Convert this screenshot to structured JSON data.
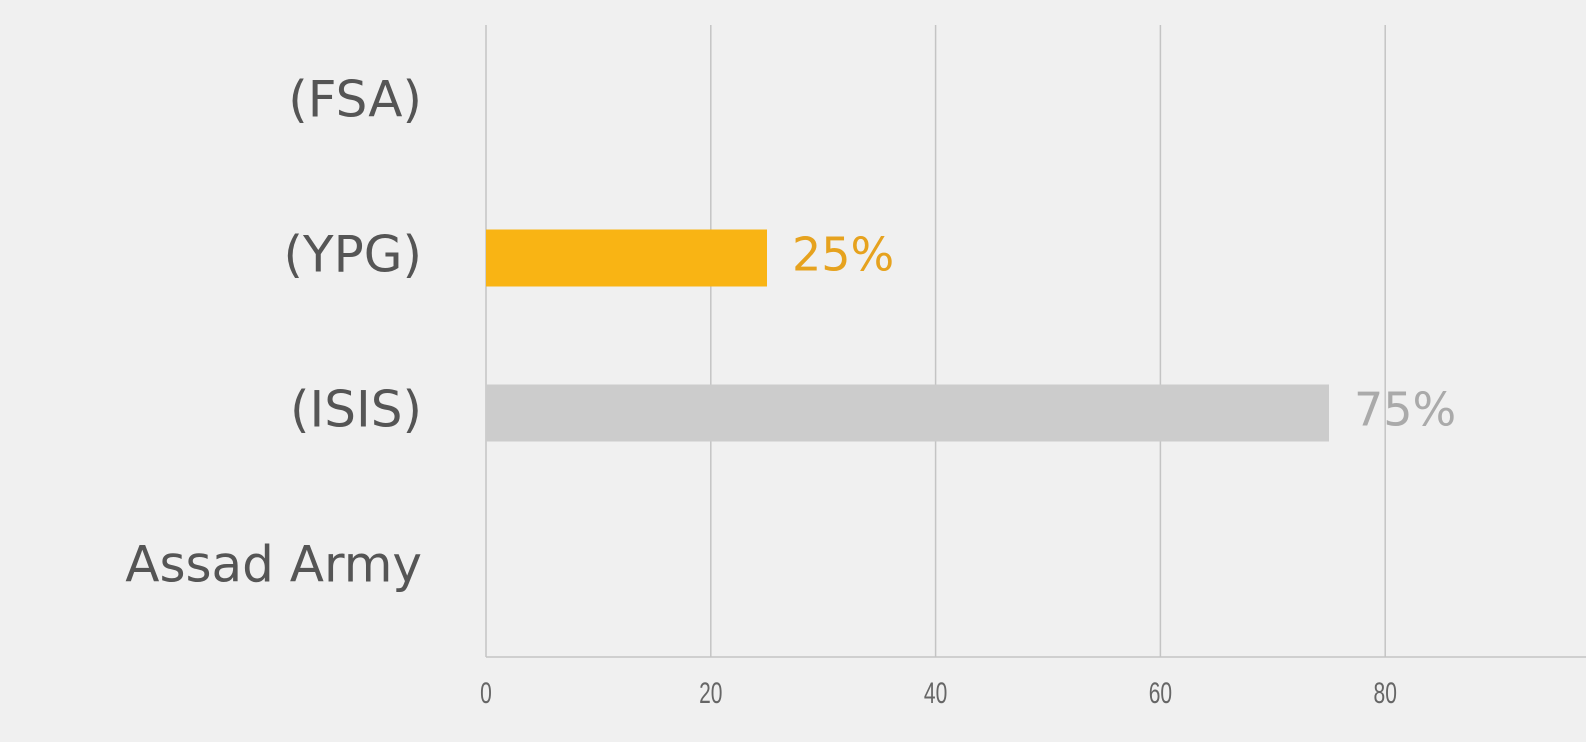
{
  "chart_data": {
    "type": "hbar",
    "categories": [
      "(FSA)",
      "(YPG)",
      "(ISIS)",
      "Assad Army"
    ],
    "values": [
      0,
      25,
      75,
      0
    ],
    "value_labels": [
      null,
      "25%",
      "75%",
      null
    ],
    "colors": [
      "#cccccc",
      "#f9b414",
      "#cccccc",
      "#cccccc"
    ],
    "label_colors": [
      "#aaaaaa",
      "#e6a21e",
      "#aaaaaa",
      "#aaaaaa"
    ],
    "xlim": [
      0,
      100
    ],
    "xticks": [
      0,
      20,
      40,
      60,
      80,
      100
    ],
    "grid": true
  }
}
